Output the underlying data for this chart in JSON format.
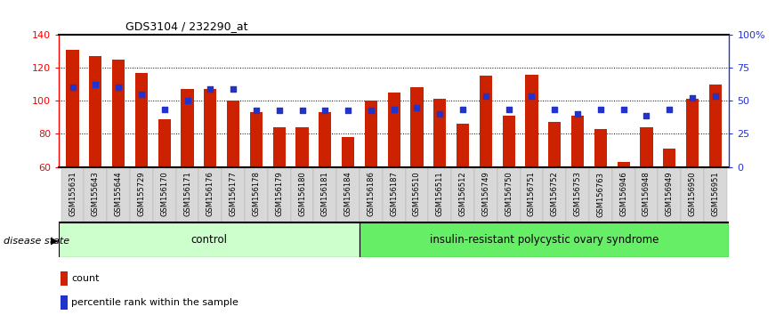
{
  "title": "GDS3104 / 232290_at",
  "samples": [
    "GSM155631",
    "GSM155643",
    "GSM155644",
    "GSM155729",
    "GSM156170",
    "GSM156171",
    "GSM156176",
    "GSM156177",
    "GSM156178",
    "GSM156179",
    "GSM156180",
    "GSM156181",
    "GSM156184",
    "GSM156186",
    "GSM156187",
    "GSM156510",
    "GSM156511",
    "GSM156512",
    "GSM156749",
    "GSM156750",
    "GSM156751",
    "GSM156752",
    "GSM156753",
    "GSM156763",
    "GSM156946",
    "GSM156948",
    "GSM156949",
    "GSM156950",
    "GSM156951"
  ],
  "bar_values": [
    131,
    127,
    125,
    117,
    89,
    107,
    107,
    100,
    93,
    84,
    84,
    93,
    78,
    100,
    105,
    108,
    101,
    86,
    115,
    91,
    116,
    87,
    91,
    83,
    63,
    84,
    71,
    101,
    110
  ],
  "percentile_values_left": [
    108,
    110,
    108,
    104,
    95,
    100,
    107,
    107,
    94,
    94,
    94,
    94,
    94,
    94,
    95,
    96,
    92,
    95,
    103,
    95,
    103,
    95,
    92,
    95,
    95,
    91,
    95,
    102,
    103
  ],
  "control_count": 13,
  "disease_count": 16,
  "ylim_left": [
    60,
    140
  ],
  "ylim_right": [
    0,
    100
  ],
  "yticks_left": [
    60,
    80,
    100,
    120,
    140
  ],
  "yticks_right": [
    0,
    25,
    50,
    75,
    100
  ],
  "ytick_labels_right": [
    "0",
    "25",
    "50",
    "75",
    "100%"
  ],
  "bar_color": "#cc2200",
  "percentile_color": "#2233cc",
  "bar_width": 0.55,
  "control_label": "control",
  "disease_label": "insulin-resistant polycystic ovary syndrome",
  "control_bg": "#ccffcc",
  "disease_bg": "#66ee66",
  "legend_count_label": "count",
  "legend_pct_label": "percentile rank within the sample",
  "disease_state_label": "disease state"
}
